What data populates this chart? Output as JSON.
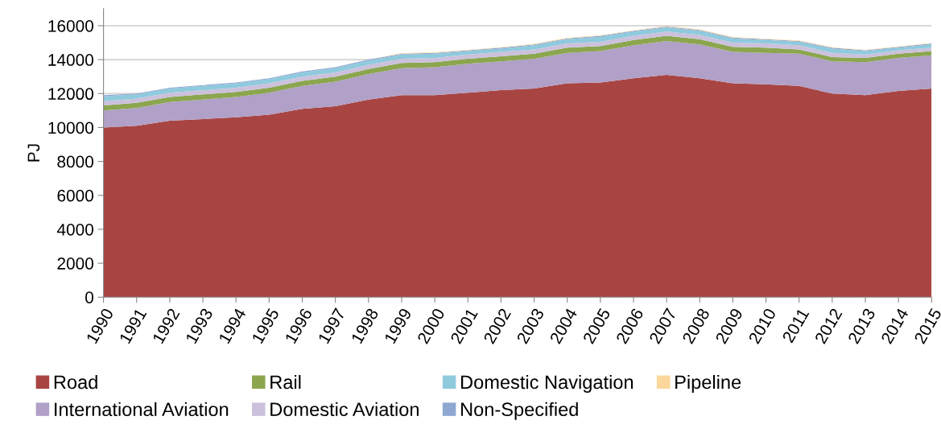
{
  "chart_data": {
    "type": "area",
    "stacked": true,
    "ylabel": "PJ",
    "categories": [
      "1990",
      "1991",
      "1992",
      "1993",
      "1994",
      "1995",
      "1996",
      "1997",
      "1998",
      "1999",
      "2000",
      "2001",
      "2002",
      "2003",
      "2004",
      "2005",
      "2006",
      "2007",
      "2008",
      "2009",
      "2010",
      "2011",
      "2012",
      "2013",
      "2014",
      "2015"
    ],
    "series": [
      {
        "name": "Road",
        "color": "#a84543",
        "values": [
          10000,
          10100,
          10400,
          10500,
          10600,
          10750,
          11100,
          11250,
          11650,
          11900,
          11900,
          12050,
          12200,
          12300,
          12600,
          12650,
          12900,
          13100,
          12900,
          12600,
          12550,
          12450,
          12000,
          11900,
          12150,
          12300
        ]
      },
      {
        "name": "International Aviation",
        "color": "#b1a0c7",
        "values": [
          1000,
          1050,
          1100,
          1150,
          1200,
          1300,
          1350,
          1450,
          1500,
          1600,
          1650,
          1700,
          1700,
          1750,
          1800,
          1850,
          1950,
          2000,
          2000,
          1850,
          1850,
          1900,
          1900,
          1950,
          1950,
          1950
        ]
      },
      {
        "name": "Rail",
        "color": "#8ba64e",
        "values": [
          300,
          300,
          300,
          300,
          300,
          300,
          300,
          300,
          300,
          300,
          300,
          300,
          300,
          300,
          300,
          300,
          300,
          300,
          300,
          300,
          300,
          250,
          250,
          250,
          250,
          250
        ]
      },
      {
        "name": "Domestic Aviation",
        "color": "#ccc1dc",
        "values": [
          250,
          250,
          250,
          250,
          250,
          250,
          250,
          250,
          250,
          250,
          250,
          250,
          250,
          250,
          250,
          250,
          250,
          250,
          250,
          250,
          250,
          250,
          250,
          200,
          200,
          200
        ]
      },
      {
        "name": "Domestic Navigation",
        "color": "#8fcadd",
        "values": [
          300,
          250,
          250,
          250,
          250,
          250,
          250,
          250,
          250,
          250,
          250,
          200,
          200,
          250,
          250,
          300,
          250,
          250,
          250,
          250,
          200,
          200,
          250,
          200,
          150,
          200
        ]
      },
      {
        "name": "Non-Specified",
        "color": "#8fa8d2",
        "values": [
          50,
          50,
          50,
          50,
          50,
          50,
          50,
          50,
          50,
          50,
          50,
          50,
          50,
          50,
          50,
          50,
          50,
          50,
          50,
          50,
          50,
          50,
          50,
          50,
          50,
          50
        ]
      },
      {
        "name": "Pipeline",
        "color": "#fcd79b",
        "values": [
          0,
          0,
          0,
          0,
          0,
          0,
          0,
          0,
          0,
          30,
          30,
          30,
          30,
          30,
          30,
          30,
          30,
          30,
          30,
          30,
          30,
          30,
          30,
          30,
          30,
          30
        ]
      }
    ],
    "ylim": [
      0,
      17000
    ],
    "yticks": [
      0,
      2000,
      4000,
      6000,
      8000,
      10000,
      12000,
      14000,
      16000
    ],
    "grid": "y",
    "legend": "bottom"
  }
}
